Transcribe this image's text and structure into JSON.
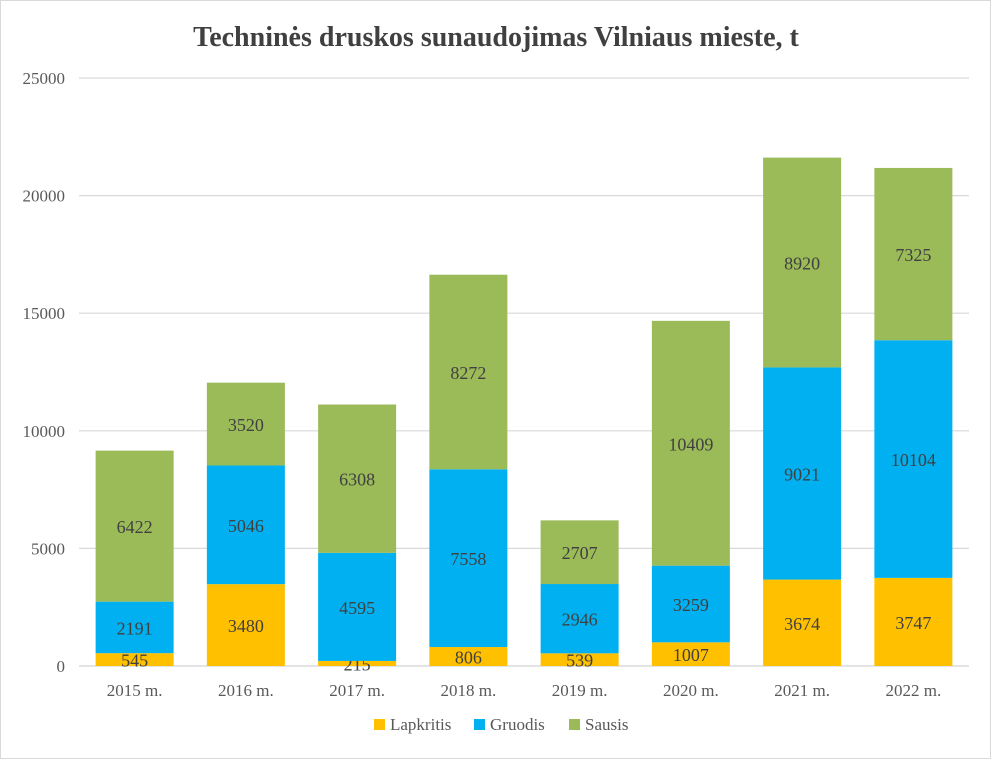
{
  "chart_data": {
    "type": "bar",
    "stacked": true,
    "title": "Techninės druskos sunaudojimas Vilniaus mieste, t",
    "categories": [
      "2015 m.",
      "2016 m.",
      "2017 m.",
      "2018 m.",
      "2019 m.",
      "2020 m.",
      "2021 m.",
      "2022 m."
    ],
    "series": [
      {
        "name": "Lapkritis",
        "color": "#FFC000",
        "values": [
          545,
          3480,
          215,
          806,
          539,
          1007,
          3674,
          3747
        ]
      },
      {
        "name": "Gruodis",
        "color": "#00B0F0",
        "values": [
          2191,
          5046,
          4595,
          7558,
          2946,
          3259,
          9021,
          10104
        ]
      },
      {
        "name": "Sausis",
        "color": "#9BBB59",
        "values": [
          6422,
          3520,
          6308,
          8272,
          2707,
          10409,
          8920,
          7325
        ]
      }
    ],
    "ylim": [
      0,
      25000
    ],
    "yticks": [
      "0",
      "5000",
      "10000",
      "15000",
      "20000",
      "25000"
    ],
    "grid": true,
    "legend": "bottom"
  }
}
